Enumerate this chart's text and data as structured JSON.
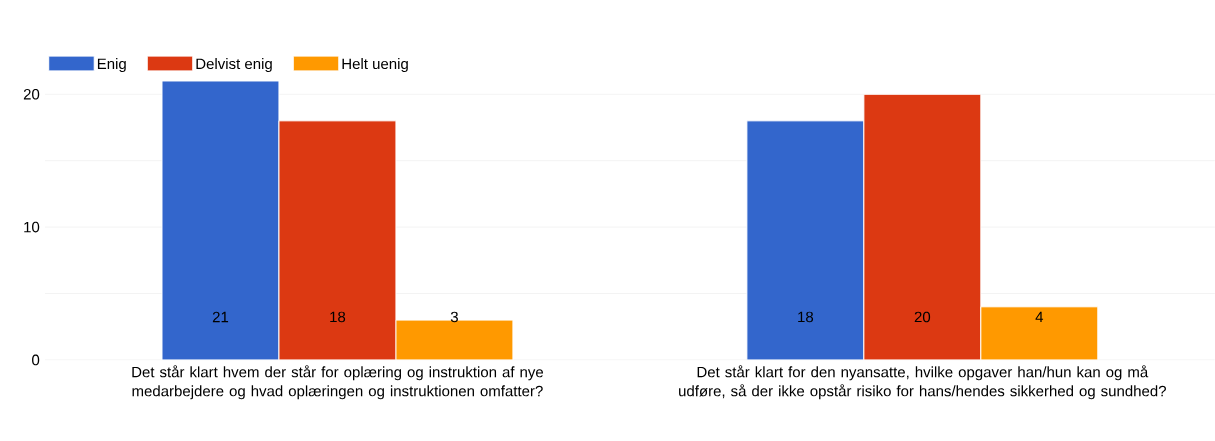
{
  "chart_data": {
    "type": "bar",
    "categories": [
      "Det står klart hvem der står for oplæring og instruktion af nye medarbejdere og hvad oplæringen og instruktionen omfatter?",
      "Det står klart for den nyansatte, hvilke opgaver han/hun kan og må udføre, så der ikke opstår risiko for hans/hendes sikkerhed og sundhed?"
    ],
    "series": [
      {
        "name": "Enig",
        "color": "#3366cc",
        "values": [
          21,
          18
        ]
      },
      {
        "name": "Delvist enig",
        "color": "#dc3912",
        "values": [
          18,
          20
        ]
      },
      {
        "name": "Helt uenig",
        "color": "#ff9900",
        "values": [
          3,
          4
        ]
      }
    ],
    "ylim": [
      0,
      21
    ],
    "yticks": [
      0,
      {
        "value": 5,
        "label": null
      },
      10,
      {
        "value": 15,
        "label": null
      },
      20
    ],
    "grid": "y",
    "legend": "top left",
    "data_labels": true
  }
}
